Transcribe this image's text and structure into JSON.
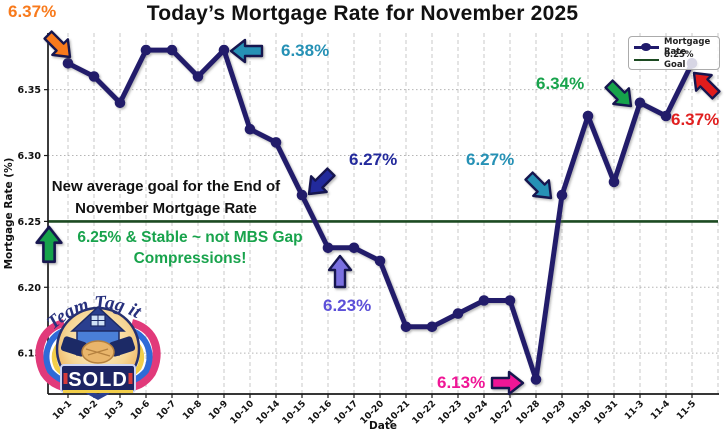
{
  "title": "Today’s Mortgage Rate for November 2025",
  "colors": {
    "line": "#201a6b",
    "goal_line": "#1c4a21",
    "orange": "#f87a1c",
    "teal": "#2691b5",
    "navy": "#232a9c",
    "purple": "#5c50d8",
    "green": "#18a34c",
    "red": "#e01f1f",
    "magenta": "#f01696"
  },
  "chart_data": {
    "type": "line",
    "title": "Today’s Mortgage Rate for November 2025",
    "xlabel": "Date",
    "ylabel": "Mortgage Rate (%)",
    "x": [
      "10-1",
      "10-2",
      "10-3",
      "10-6",
      "10-7",
      "10-8",
      "10-9",
      "10-10",
      "10-14",
      "10-15",
      "10-16",
      "10-17",
      "10-20",
      "10-21",
      "10-22",
      "10-23",
      "10-24",
      "10-27",
      "10-28",
      "10-29",
      "10-30",
      "10-31",
      "11-3",
      "11-4",
      "11-5"
    ],
    "series": [
      {
        "name": "Mortgage Rate",
        "values": [
          6.37,
          6.36,
          6.34,
          6.38,
          6.38,
          6.36,
          6.38,
          6.32,
          6.31,
          6.27,
          6.23,
          6.23,
          6.22,
          6.17,
          6.17,
          6.18,
          6.19,
          6.19,
          6.13,
          6.27,
          6.33,
          6.28,
          6.34,
          6.33,
          6.37
        ]
      },
      {
        "name": "6.25% Goal",
        "constant": 6.25
      }
    ],
    "yticks": [
      6.15,
      6.2,
      6.25,
      6.3,
      6.35
    ],
    "ylim": [
      6.119,
      6.393
    ],
    "grid": true,
    "legend_position": "top-right"
  },
  "legend": {
    "entries": [
      {
        "label": "Mortgage Rate"
      },
      {
        "label": "6.25% Goal"
      }
    ]
  },
  "annotations": {
    "rate_start": {
      "text": "6.37%",
      "color": "#f87a1c"
    },
    "peak": {
      "text": "6.38%",
      "color": "#2691b5"
    },
    "mid_drop": {
      "text": "6.27%",
      "color": "#232a9c"
    },
    "flat_low": {
      "text": "6.23%",
      "color": "#5c50d8"
    },
    "rebound": {
      "text": "6.27%",
      "color": "#2691b5"
    },
    "nov_high": {
      "text": "6.34%",
      "color": "#18a34c"
    },
    "rate_end": {
      "text": "6.37%",
      "color": "#e01f1f"
    },
    "month_low": {
      "text": "6.13%",
      "color": "#f01696"
    },
    "goal_note_line1": "New average goal for the End of",
    "goal_note_line2": "November Mortgage Rate",
    "stable_note_line1": "6.25% & Stable ~ not MBS Gap",
    "stable_note_line2": "Compressions!",
    "stable_note_color": "#18a34c",
    "goal_note_color": "#111111"
  },
  "arrows": [
    {
      "name": "orange-down-right-arrow",
      "color": "#f87a1c"
    },
    {
      "name": "teal-left-arrow",
      "color": "#2691b5"
    },
    {
      "name": "navy-down-left-arrow",
      "color": "#232a9c"
    },
    {
      "name": "purple-up-arrow",
      "color": "#7a6fe0"
    },
    {
      "name": "teal-down-right-arrow",
      "color": "#2691b5"
    },
    {
      "name": "green-down-right-arrow",
      "color": "#18a34c"
    },
    {
      "name": "red-up-left-arrow",
      "color": "#e01f1f"
    },
    {
      "name": "magenta-right-arrow",
      "color": "#f01696"
    },
    {
      "name": "green-up-arrow",
      "color": "#18a34c"
    }
  ],
  "logo": {
    "arc_text": "Team Tag it",
    "banner_text": "SOLD"
  }
}
